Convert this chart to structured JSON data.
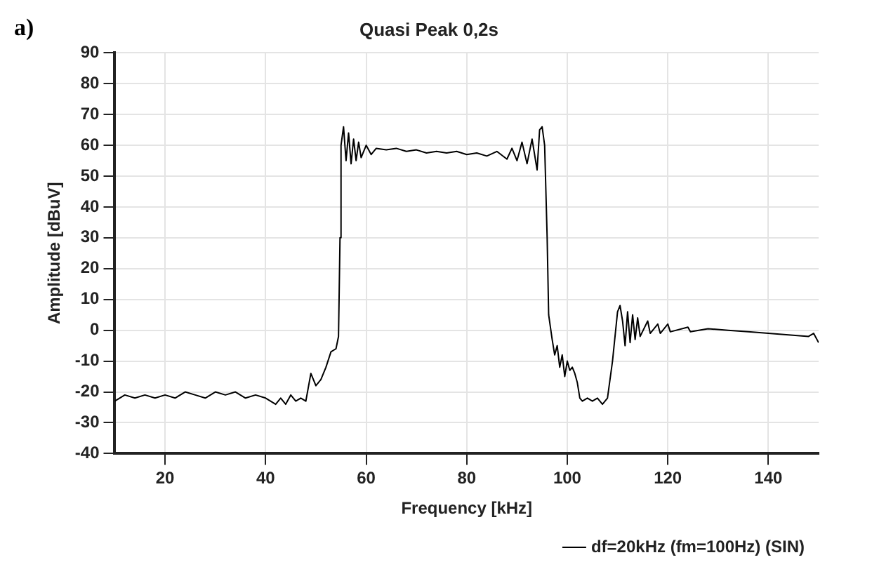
{
  "chart_data": {
    "type": "line",
    "title": "Quasi Peak 0,2s",
    "xlabel": "Frequency [kHz]",
    "ylabel": "Amplitude [dBuV]",
    "annotations": [
      "a)"
    ],
    "xlim": [
      10,
      150
    ],
    "xticks": [
      20,
      40,
      60,
      80,
      100,
      120,
      140
    ],
    "ylim": [
      -40,
      90
    ],
    "yticks": [
      -40,
      -30,
      -20,
      -10,
      0,
      10,
      20,
      30,
      40,
      50,
      60,
      70,
      80,
      90
    ],
    "grid": true,
    "legend": "bottom right",
    "marker": "none",
    "line_style": "solid",
    "series": [
      {
        "name": "df=20kHz (fm=100Hz) (SIN)",
        "color": "#000000",
        "x": [
          10,
          12,
          14,
          16,
          18,
          20,
          22,
          24,
          26,
          28,
          30,
          32,
          34,
          36,
          38,
          40,
          42,
          43,
          44,
          45,
          46,
          47,
          48,
          49,
          50,
          51,
          52,
          53,
          54,
          54.5,
          54.8,
          55,
          55.5,
          56,
          56.5,
          57,
          57.5,
          58,
          58.5,
          59,
          60,
          61,
          62,
          64,
          66,
          68,
          70,
          72,
          74,
          76,
          78,
          80,
          82,
          84,
          86,
          88,
          89,
          90,
          91,
          92,
          93,
          94,
          94.5,
          95,
          95.5,
          96,
          96.3,
          97,
          97.5,
          98,
          98.5,
          99,
          99.5,
          100,
          100.5,
          101,
          101.5,
          102,
          102.5,
          103,
          104,
          105,
          106,
          107,
          108,
          109,
          110,
          110.5,
          111,
          111.5,
          112,
          112.5,
          113,
          113.5,
          114,
          114.5,
          116,
          116.5,
          118,
          118.5,
          120,
          120.5,
          124,
          124.5,
          128,
          132,
          136,
          140,
          144,
          148,
          149,
          150
        ],
        "values": [
          -23,
          -21,
          -22,
          -21,
          -22,
          -21,
          -22,
          -20,
          -21,
          -22,
          -20,
          -21,
          -20,
          -22,
          -21,
          -22,
          -24,
          -22,
          -24,
          -21,
          -23,
          -22,
          -23,
          -14,
          -18,
          -16,
          -12,
          -7,
          -6,
          -2,
          30,
          60,
          66,
          55,
          64,
          54,
          62,
          55,
          61,
          56,
          60,
          57,
          59,
          58.5,
          59,
          58,
          58.5,
          57.5,
          58,
          57.5,
          58,
          57,
          57.5,
          56.5,
          58,
          55.5,
          59,
          55,
          61,
          54,
          62,
          52,
          65,
          66,
          60,
          30,
          5,
          -3,
          -8,
          -5,
          -12,
          -8,
          -15,
          -10,
          -13,
          -12,
          -14,
          -17,
          -22,
          -23,
          -22,
          -23,
          -22,
          -24,
          -22,
          -10,
          6,
          8,
          3,
          -5,
          6,
          -4,
          5,
          -3,
          4,
          -2,
          3,
          -1,
          2,
          -1,
          2,
          -0.5,
          1,
          -0.5,
          0.5,
          0,
          -0.5,
          -1,
          -1.5,
          -2,
          -1,
          -4
        ]
      }
    ]
  }
}
